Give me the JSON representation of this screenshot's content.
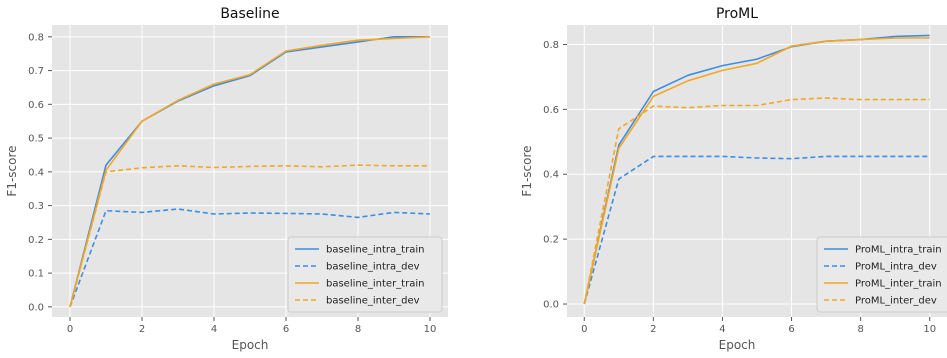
{
  "chart_data": [
    {
      "type": "line",
      "title": "Baseline",
      "xlabel": "Epoch",
      "ylabel": "F1-score",
      "xlim": [
        -0.5,
        10.5
      ],
      "ylim": [
        -0.03,
        0.835
      ],
      "xticks": [
        0,
        2,
        4,
        6,
        8,
        10
      ],
      "yticks": [
        0.0,
        0.1,
        0.2,
        0.3,
        0.4,
        0.5,
        0.6,
        0.7,
        0.8
      ],
      "ytick_labels": [
        "0.0",
        "0.1",
        "0.2",
        "0.3",
        "0.4",
        "0.5",
        "0.6",
        "0.7",
        "0.8"
      ],
      "grid": true,
      "legend_position": "lower-right",
      "x": [
        0,
        1,
        2,
        3,
        4,
        5,
        6,
        7,
        8,
        9,
        10
      ],
      "series": [
        {
          "name": "baseline_intra_train",
          "color": "#3a8ee6",
          "dash": "solid",
          "values": [
            0.0,
            0.42,
            0.55,
            0.61,
            0.655,
            0.685,
            0.755,
            0.77,
            0.785,
            0.8,
            0.8
          ]
        },
        {
          "name": "baseline_intra_dev",
          "color": "#3a8ee6",
          "dash": "dashed",
          "values": [
            0.0,
            0.285,
            0.28,
            0.29,
            0.275,
            0.278,
            0.277,
            0.275,
            0.265,
            0.28,
            0.275
          ]
        },
        {
          "name": "baseline_inter_train",
          "color": "#f5a623",
          "dash": "solid",
          "values": [
            0.0,
            0.405,
            0.55,
            0.612,
            0.66,
            0.688,
            0.758,
            0.775,
            0.79,
            0.795,
            0.8
          ]
        },
        {
          "name": "baseline_inter_dev",
          "color": "#f5a623",
          "dash": "dashed",
          "values": [
            0.0,
            0.4,
            0.412,
            0.418,
            0.413,
            0.416,
            0.418,
            0.415,
            0.42,
            0.418,
            0.418
          ]
        }
      ]
    },
    {
      "type": "line",
      "title": "ProML",
      "xlabel": "Epoch",
      "ylabel": "F1-score",
      "xlim": [
        -0.5,
        10.5
      ],
      "ylim": [
        -0.04,
        0.86
      ],
      "xticks": [
        0,
        2,
        4,
        6,
        8,
        10
      ],
      "yticks": [
        0.0,
        0.2,
        0.4,
        0.6,
        0.8
      ],
      "ytick_labels": [
        "0.0",
        "0.2",
        "0.4",
        "0.6",
        "0.8"
      ],
      "grid": true,
      "legend_position": "lower-right",
      "x": [
        0,
        1,
        2,
        3,
        4,
        5,
        6,
        7,
        8,
        9,
        10
      ],
      "series": [
        {
          "name": "ProML_intra_train",
          "color": "#3a8ee6",
          "dash": "solid",
          "values": [
            0.0,
            0.49,
            0.655,
            0.705,
            0.735,
            0.755,
            0.793,
            0.81,
            0.815,
            0.825,
            0.828
          ]
        },
        {
          "name": "ProML_intra_dev",
          "color": "#3a8ee6",
          "dash": "dashed",
          "values": [
            0.0,
            0.385,
            0.455,
            0.455,
            0.455,
            0.45,
            0.448,
            0.455,
            0.455,
            0.455,
            0.455
          ]
        },
        {
          "name": "ProML_inter_train",
          "color": "#f5a623",
          "dash": "solid",
          "values": [
            0.0,
            0.48,
            0.64,
            0.688,
            0.72,
            0.742,
            0.795,
            0.81,
            0.815,
            0.82,
            0.82
          ]
        },
        {
          "name": "ProML_inter_dev",
          "color": "#f5a623",
          "dash": "dashed",
          "values": [
            0.0,
            0.54,
            0.61,
            0.605,
            0.612,
            0.612,
            0.63,
            0.635,
            0.63,
            0.63,
            0.63
          ]
        }
      ]
    }
  ]
}
